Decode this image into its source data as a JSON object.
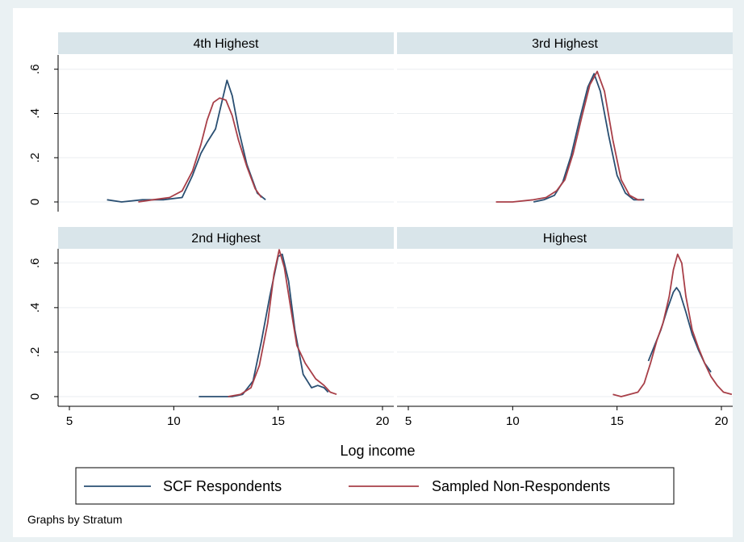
{
  "chart_data": {
    "type": "line",
    "xlabel": "Log income",
    "note": "Graphs by Stratum",
    "xlim": [
      5,
      20
    ],
    "ylim": [
      0,
      0.65
    ],
    "x_ticks": [
      5,
      10,
      15,
      20
    ],
    "x_tick_labels": [
      "5",
      "10",
      "15",
      "20"
    ],
    "y_ticks": [
      0,
      0.2,
      0.4,
      0.6
    ],
    "y_tick_labels": [
      "0",
      ".2",
      ".4",
      ".6"
    ],
    "grid": true,
    "legend_position": "bottom",
    "series_colors": [
      "#2a4f72",
      "#a83f48"
    ],
    "legend": [
      "SCF Respondents",
      "Sampled Non-Respondents"
    ],
    "panels": [
      {
        "title": "4th Highest",
        "series": [
          {
            "name": "SCF Respondents",
            "x": [
              6.8,
              7.5,
              8.5,
              9.5,
              10.4,
              10.9,
              11.3,
              11.6,
              12.0,
              12.3,
              12.55,
              12.8,
              13.1,
              13.5,
              14.0,
              14.4
            ],
            "y": [
              0.01,
              0.0,
              0.01,
              0.01,
              0.02,
              0.12,
              0.22,
              0.27,
              0.33,
              0.45,
              0.55,
              0.48,
              0.33,
              0.17,
              0.04,
              0.01
            ]
          },
          {
            "name": "Sampled Non-Respondents",
            "x": [
              8.3,
              9.0,
              9.8,
              10.4,
              10.9,
              11.3,
              11.6,
              11.9,
              12.2,
              12.5,
              12.8,
              13.1,
              13.5,
              13.9,
              14.2
            ],
            "y": [
              0.0,
              0.01,
              0.02,
              0.05,
              0.14,
              0.26,
              0.37,
              0.45,
              0.47,
              0.46,
              0.39,
              0.28,
              0.16,
              0.06,
              0.02
            ]
          }
        ]
      },
      {
        "title": "3rd Highest",
        "series": [
          {
            "name": "SCF Respondents",
            "x": [
              11.0,
              11.5,
              12.0,
              12.4,
              12.8,
              13.2,
              13.6,
              13.9,
              14.2,
              14.6,
              15.0,
              15.4,
              15.8,
              16.3
            ],
            "y": [
              0.0,
              0.01,
              0.03,
              0.09,
              0.21,
              0.37,
              0.52,
              0.58,
              0.5,
              0.3,
              0.12,
              0.04,
              0.01,
              0.01
            ]
          },
          {
            "name": "Sampled Non-Respondents",
            "x": [
              9.2,
              10.0,
              11.0,
              11.6,
              12.1,
              12.5,
              12.9,
              13.3,
              13.7,
              14.05,
              14.4,
              14.8,
              15.2,
              15.6,
              16.0,
              16.2
            ],
            "y": [
              0.0,
              0.0,
              0.01,
              0.02,
              0.05,
              0.1,
              0.22,
              0.38,
              0.53,
              0.59,
              0.5,
              0.28,
              0.1,
              0.03,
              0.01,
              0.01
            ]
          }
        ]
      },
      {
        "title": "2nd Highest",
        "series": [
          {
            "name": "SCF Respondents",
            "x": [
              11.2,
              12.0,
              12.8,
              13.3,
              13.8,
              14.2,
              14.6,
              15.0,
              15.2,
              15.5,
              15.8,
              16.2,
              16.6,
              16.9,
              17.2,
              17.4
            ],
            "y": [
              0.0,
              0.0,
              0.0,
              0.01,
              0.07,
              0.25,
              0.45,
              0.63,
              0.64,
              0.52,
              0.3,
              0.1,
              0.04,
              0.05,
              0.04,
              0.02
            ]
          },
          {
            "name": "Sampled Non-Respondents",
            "x": [
              12.6,
              13.2,
              13.7,
              14.1,
              14.5,
              14.8,
              15.05,
              15.3,
              15.6,
              15.9,
              16.3,
              16.8,
              17.2,
              17.5,
              17.8
            ],
            "y": [
              0.0,
              0.01,
              0.04,
              0.14,
              0.33,
              0.55,
              0.66,
              0.58,
              0.4,
              0.23,
              0.15,
              0.08,
              0.05,
              0.02,
              0.01
            ]
          }
        ]
      },
      {
        "title": "Highest",
        "series": [
          {
            "name": "SCF Respondents",
            "x": [
              16.5,
              16.8,
              17.1,
              17.4,
              17.7,
              17.85,
              18.0,
              18.3,
              18.6,
              18.9,
              19.2,
              19.5
            ],
            "y": [
              0.16,
              0.23,
              0.3,
              0.39,
              0.47,
              0.49,
              0.47,
              0.38,
              0.28,
              0.21,
              0.15,
              0.11
            ]
          },
          {
            "name": "Sampled Non-Respondents",
            "x": [
              14.8,
              15.2,
              15.6,
              16.0,
              16.3,
              16.6,
              16.9,
              17.2,
              17.5,
              17.7,
              17.9,
              18.1,
              18.3,
              18.6,
              18.9,
              19.2,
              19.5,
              19.8,
              20.1,
              20.5
            ],
            "y": [
              0.01,
              0.0,
              0.01,
              0.02,
              0.06,
              0.15,
              0.25,
              0.33,
              0.45,
              0.57,
              0.64,
              0.6,
              0.45,
              0.3,
              0.22,
              0.15,
              0.09,
              0.05,
              0.02,
              0.01
            ]
          }
        ]
      }
    ]
  }
}
